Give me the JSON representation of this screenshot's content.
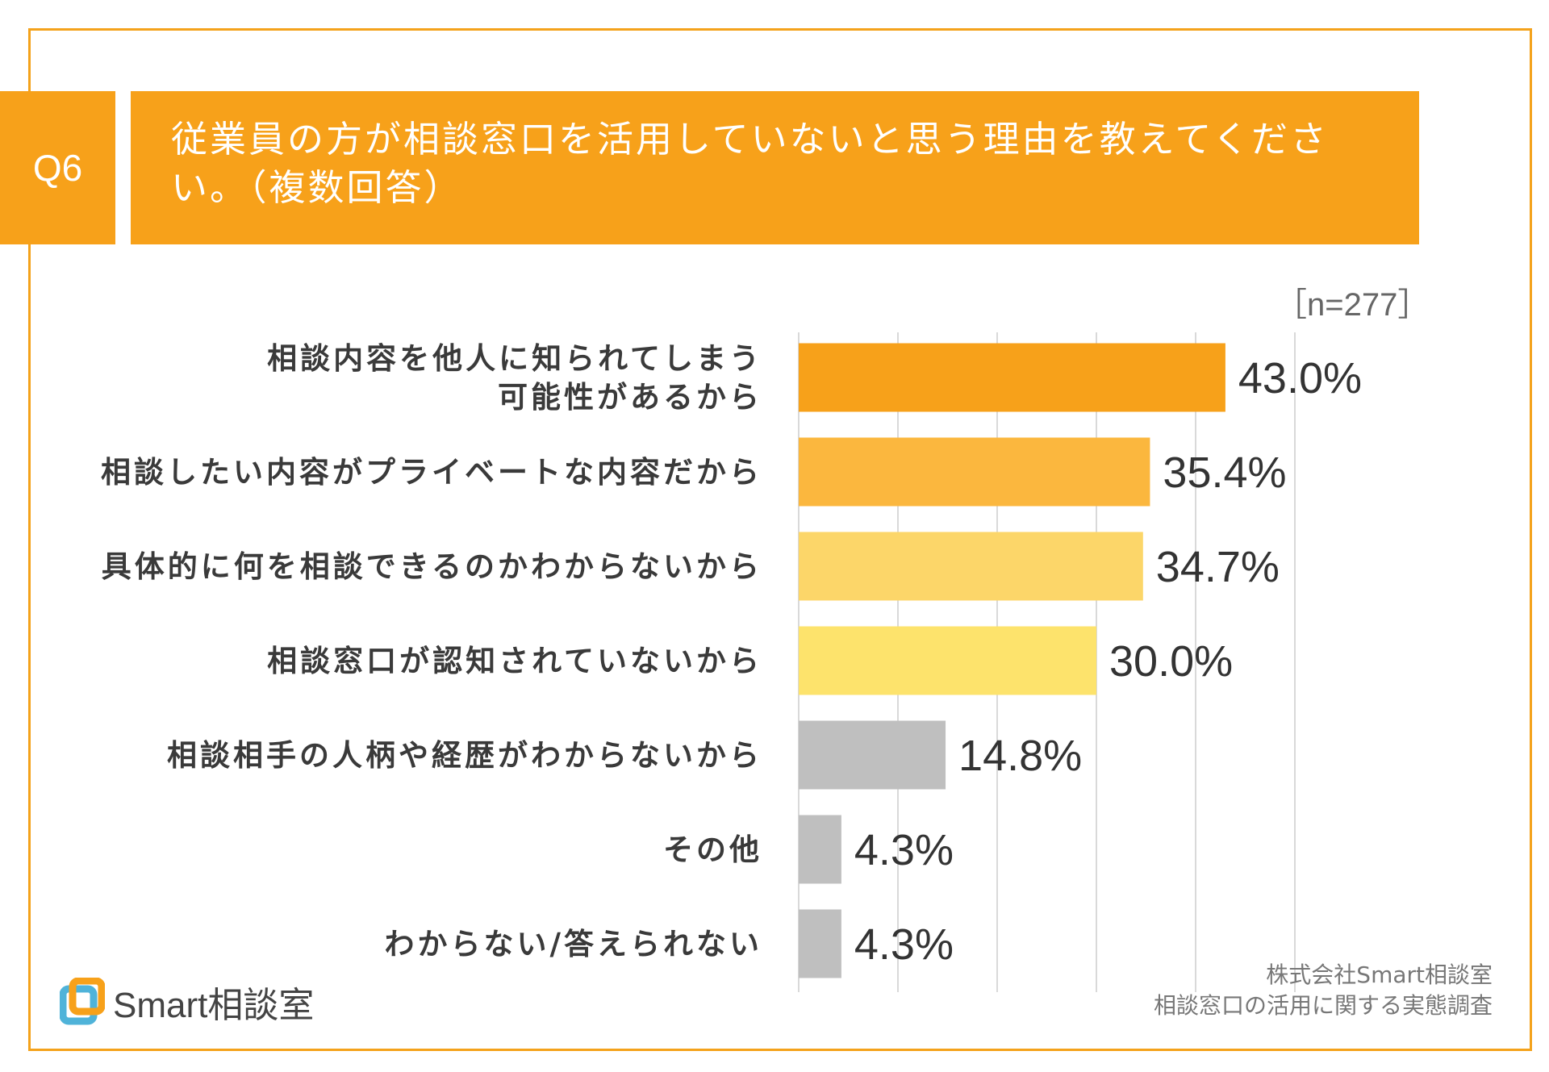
{
  "question": {
    "number": "Q6",
    "title": "従業員の方が相談窓口を活用していないと思う理由を教えてください。（複数回答）"
  },
  "sample_size": "［n=277］",
  "chart_data": {
    "type": "bar",
    "orientation": "horizontal",
    "title": "従業員の方が相談窓口を活用していないと思う理由を教えてください。（複数回答）",
    "categories": [
      "相談内容を他人に知られてしまう 可能性があるから",
      "相談したい内容がプライベートな内容だから",
      "具体的に何を相談できるのかわからないから",
      "相談窓口が認知されていないから",
      "相談相手の人柄や経歴がわからないから",
      "その他",
      "わからない/答えられない"
    ],
    "category_lines": [
      [
        "相談内容を他人に知られてしまう",
        "可能性があるから"
      ],
      [
        "相談したい内容がプライベートな内容だから"
      ],
      [
        "具体的に何を相談できるのかわからないから"
      ],
      [
        "相談窓口が認知されていないから"
      ],
      [
        "相談相手の人柄や経歴がわからないから"
      ],
      [
        "その他"
      ],
      [
        "わからない/答えられない"
      ]
    ],
    "values": [
      43.0,
      35.4,
      34.7,
      30.0,
      14.8,
      4.3,
      4.3
    ],
    "value_labels": [
      "43.0%",
      "35.4%",
      "34.7%",
      "30.0%",
      "14.8%",
      "4.3%",
      "4.3%"
    ],
    "unit": "%",
    "xlim": [
      0,
      50
    ],
    "grid_step": 10,
    "grid": true,
    "colors": [
      "#f7a11a",
      "#fbb73e",
      "#fcd669",
      "#fde36c",
      "#bfbfbf",
      "#bfbfbf",
      "#bfbfbf"
    ],
    "grid_color": "#d9d9d9"
  },
  "source": {
    "line1": "株式会社Smart相談室",
    "line2": "相談窓口の活用に関する実態調査"
  },
  "brand": {
    "name": "Smart相談室",
    "colors": [
      "#f7a11a",
      "#4fb3d9"
    ]
  }
}
